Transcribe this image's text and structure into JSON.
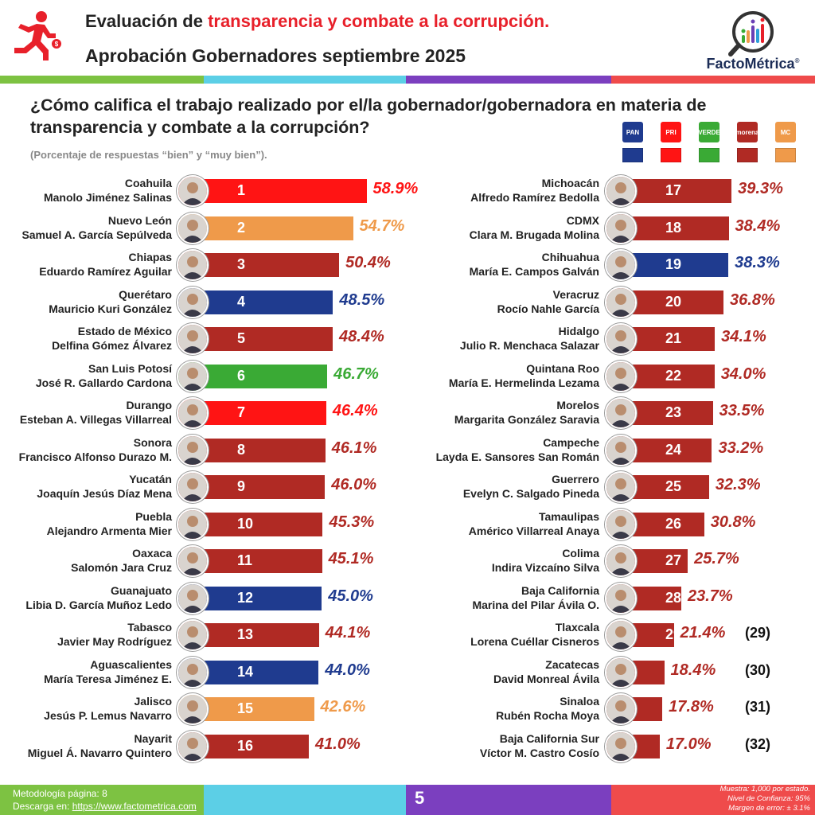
{
  "header": {
    "title_prefix": "Evaluación de ",
    "title_highlight": "transparencia y combate a la corrupción.",
    "subtitle": "Aprobación Gobernadores septiembre 2025",
    "logo_text": "FactoMétrica",
    "logo_reg": "®"
  },
  "question": "¿Cómo califica el trabajo realizado por el/la gobernador/gobernadora en materia de transparencia y combate a la corrupción?",
  "note": "(Porcentaje de respuestas “bien” y “muy bien”).",
  "parties": [
    {
      "name": "PAN",
      "color": "#1f3b8f"
    },
    {
      "name": "PRI",
      "color": "#ff1414"
    },
    {
      "name": "VERDE",
      "color": "#3aaa35"
    },
    {
      "name": "morena",
      "color": "#b02a24"
    },
    {
      "name": "MC",
      "color": "#ef9a4a"
    }
  ],
  "colors": {
    "PAN": "#1f3b8f",
    "PRI": "#ff1414",
    "VERDE": "#3aaa35",
    "MORENA": "#b02a24",
    "MC": "#ef9a4a"
  },
  "chart_data": {
    "type": "bar",
    "orientation": "horizontal",
    "unit": "%",
    "xlim": [
      0,
      60
    ],
    "items": [
      {
        "rank": 1,
        "state": "Coahuila",
        "governor": "Manolo Jiménez Salinas",
        "value": 58.9,
        "label": "58.9%",
        "party": "PRI"
      },
      {
        "rank": 2,
        "state": "Nuevo León",
        "governor": "Samuel A. García Sepúlveda",
        "value": 54.7,
        "label": "54.7%",
        "party": "MC"
      },
      {
        "rank": 3,
        "state": "Chiapas",
        "governor": "Eduardo Ramírez Aguilar",
        "value": 50.4,
        "label": "50.4%",
        "party": "MORENA"
      },
      {
        "rank": 4,
        "state": "Querétaro",
        "governor": "Mauricio Kuri González",
        "value": 48.5,
        "label": "48.5%",
        "party": "PAN"
      },
      {
        "rank": 5,
        "state": "Estado de México",
        "governor": "Delfina Gómez Álvarez",
        "value": 48.4,
        "label": "48.4%",
        "party": "MORENA"
      },
      {
        "rank": 6,
        "state": "San Luis Potosí",
        "governor": "José R. Gallardo Cardona",
        "value": 46.7,
        "label": "46.7%",
        "party": "VERDE"
      },
      {
        "rank": 7,
        "state": "Durango",
        "governor": "Esteban A. Villegas Villarreal",
        "value": 46.4,
        "label": "46.4%",
        "party": "PRI"
      },
      {
        "rank": 8,
        "state": "Sonora",
        "governor": "Francisco Alfonso Durazo M.",
        "value": 46.1,
        "label": "46.1%",
        "party": "MORENA"
      },
      {
        "rank": 9,
        "state": "Yucatán",
        "governor": "Joaquín Jesús Díaz Mena",
        "value": 46.0,
        "label": "46.0%",
        "party": "MORENA"
      },
      {
        "rank": 10,
        "state": "Puebla",
        "governor": "Alejandro Armenta Mier",
        "value": 45.3,
        "label": "45.3%",
        "party": "MORENA"
      },
      {
        "rank": 11,
        "state": "Oaxaca",
        "governor": "Salomón Jara Cruz",
        "value": 45.1,
        "label": "45.1%",
        "party": "MORENA"
      },
      {
        "rank": 12,
        "state": "Guanajuato",
        "governor": "Libia D. García Muñoz Ledo",
        "value": 45.0,
        "label": "45.0%",
        "party": "PAN"
      },
      {
        "rank": 13,
        "state": "Tabasco",
        "governor": "Javier May Rodríguez",
        "value": 44.1,
        "label": "44.1%",
        "party": "MORENA"
      },
      {
        "rank": 14,
        "state": "Aguascalientes",
        "governor": "María Teresa Jiménez E.",
        "value": 44.0,
        "label": "44.0%",
        "party": "PAN"
      },
      {
        "rank": 15,
        "state": "Jalisco",
        "governor": "Jesús P. Lemus Navarro",
        "value": 42.6,
        "label": "42.6%",
        "party": "MC"
      },
      {
        "rank": 16,
        "state": "Nayarit",
        "governor": "Miguel Á. Navarro Quintero",
        "value": 41.0,
        "label": "41.0%",
        "party": "MORENA"
      },
      {
        "rank": 17,
        "state": "Michoacán",
        "governor": "Alfredo Ramírez Bedolla",
        "value": 39.3,
        "label": "39.3%",
        "party": "MORENA"
      },
      {
        "rank": 18,
        "state": "CDMX",
        "governor": "Clara M. Brugada Molina",
        "value": 38.4,
        "label": "38.4%",
        "party": "MORENA"
      },
      {
        "rank": 19,
        "state": "Chihuahua",
        "governor": "María E. Campos Galván",
        "value": 38.3,
        "label": "38.3%",
        "party": "PAN"
      },
      {
        "rank": 20,
        "state": "Veracruz",
        "governor": "Rocío Nahle García",
        "value": 36.8,
        "label": "36.8%",
        "party": "MORENA"
      },
      {
        "rank": 21,
        "state": "Hidalgo",
        "governor": "Julio R. Menchaca Salazar",
        "value": 34.1,
        "label": "34.1%",
        "party": "MORENA"
      },
      {
        "rank": 22,
        "state": "Quintana Roo",
        "governor": "María E. Hermelinda Lezama",
        "value": 34.0,
        "label": "34.0%",
        "party": "MORENA"
      },
      {
        "rank": 23,
        "state": "Morelos",
        "governor": "Margarita González Saravia",
        "value": 33.5,
        "label": "33.5%",
        "party": "MORENA"
      },
      {
        "rank": 24,
        "state": "Campeche",
        "governor": "Layda E. Sansores San Román",
        "value": 33.2,
        "label": "33.2%",
        "party": "MORENA"
      },
      {
        "rank": 25,
        "state": "Guerrero",
        "governor": "Evelyn C. Salgado Pineda",
        "value": 32.3,
        "label": "32.3%",
        "party": "MORENA"
      },
      {
        "rank": 26,
        "state": "Tamaulipas",
        "governor": "Américo Villarreal Anaya",
        "value": 30.8,
        "label": "30.8%",
        "party": "MORENA"
      },
      {
        "rank": 27,
        "state": "Colima",
        "governor": "Indira Vizcaíno Silva",
        "value": 25.7,
        "label": "25.7%",
        "party": "MORENA"
      },
      {
        "rank": 28,
        "state": "Baja California",
        "governor": "Marina del Pilar Ávila O.",
        "value": 23.7,
        "label": "23.7%",
        "party": "MORENA"
      },
      {
        "rank": 29,
        "state": "Tlaxcala",
        "governor": "Lorena Cuéllar Cisneros",
        "value": 21.4,
        "label": "21.4%",
        "party": "MORENA",
        "outside_rank": "(29)"
      },
      {
        "rank": 30,
        "state": "Zacatecas",
        "governor": "David Monreal Ávila",
        "value": 18.4,
        "label": "18.4%",
        "party": "MORENA",
        "outside_rank": "(30)"
      },
      {
        "rank": 31,
        "state": "Sinaloa",
        "governor": "Rubén Rocha Moya",
        "value": 17.8,
        "label": "17.8%",
        "party": "MORENA",
        "outside_rank": "(31)"
      },
      {
        "rank": 32,
        "state": "Baja California Sur",
        "governor": "Víctor M. Castro Cosío",
        "value": 17.0,
        "label": "17.0%",
        "party": "MORENA",
        "outside_rank": "(32)"
      }
    ]
  },
  "footer": {
    "methodology": "Metodología página: 8",
    "download_prefix": "Descarga en: ",
    "download_link": "https://www.factometrica.com",
    "page": "5",
    "sample": "Muestra:  1,000 por estado.",
    "confidence": "Nivel de Confianza: 95%",
    "error": "Margen de error: ± 3.1%"
  }
}
